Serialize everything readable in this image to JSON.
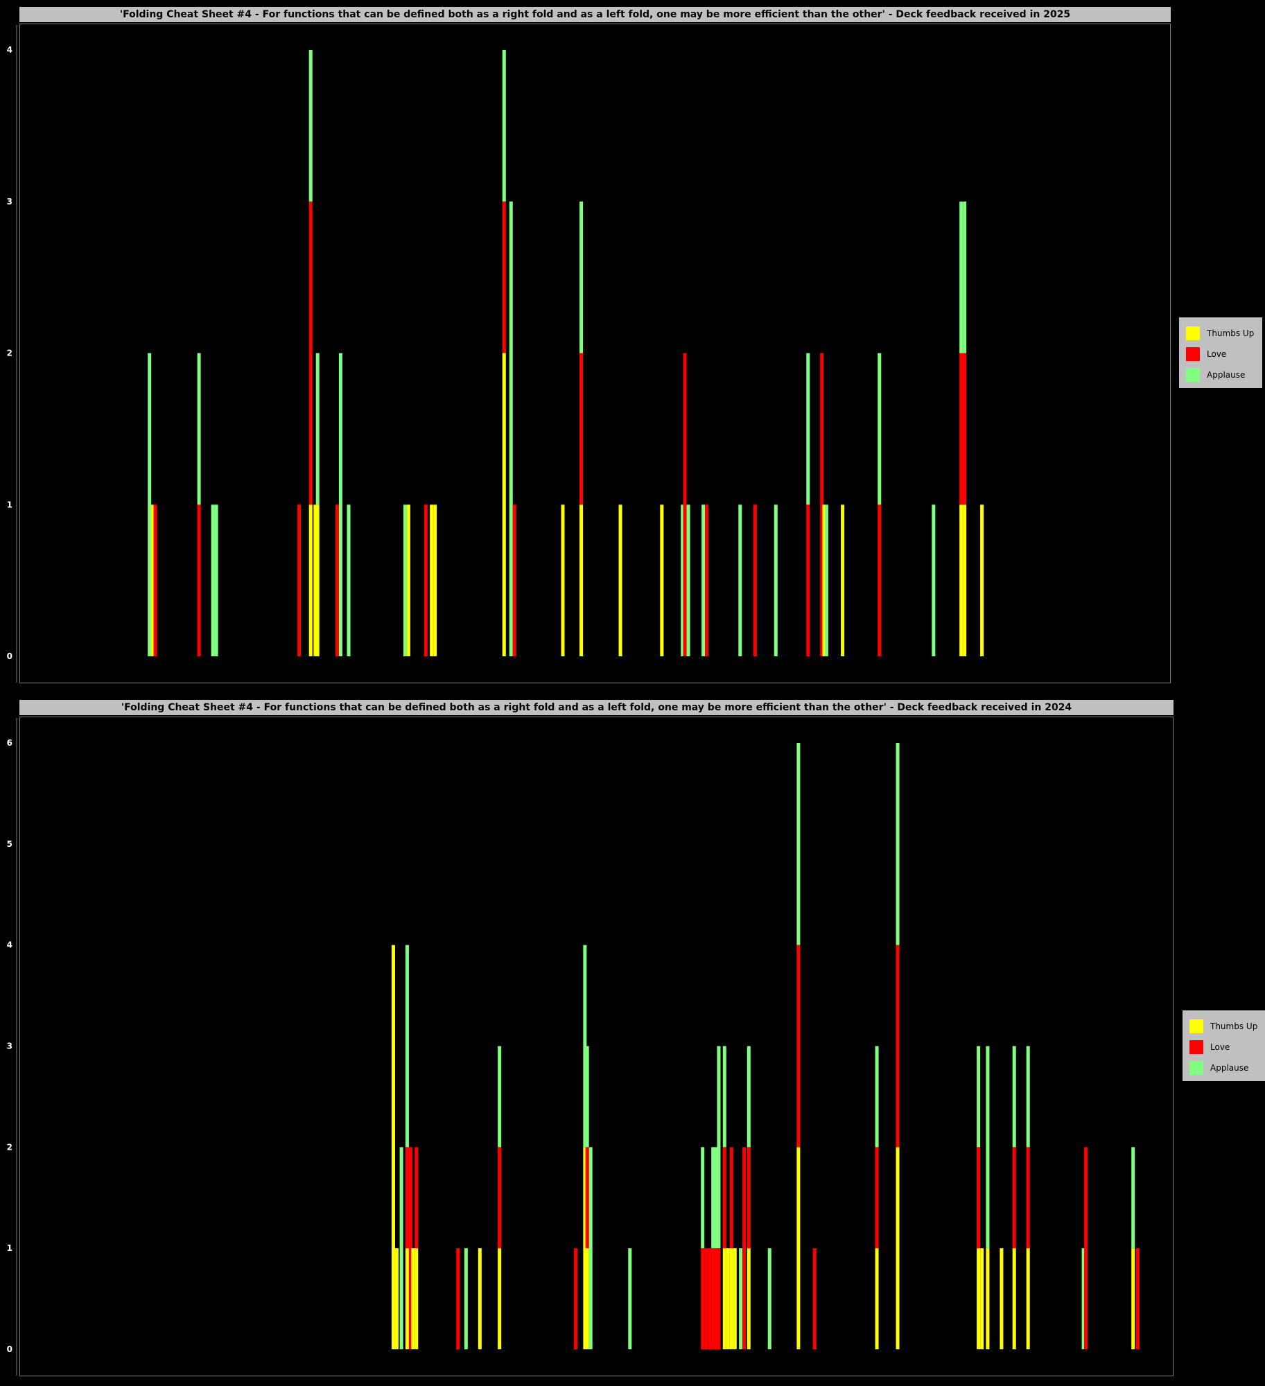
{
  "colors": {
    "thumbs_up": "#ffff00",
    "love": "#ff0000",
    "applause": "#80ff80"
  },
  "chart_data": [
    {
      "type": "bar",
      "stacked": true,
      "title": "'Folding Cheat Sheet #4 - For functions that can be defined both as a right fold and as a left fold, one may be more efficient than the other' - Deck feedback received in 2025",
      "ylim": [
        0,
        4
      ],
      "yticks": [
        "0",
        "1",
        "2",
        "3",
        "4"
      ],
      "grid": false,
      "legend_position": "right",
      "series": [
        {
          "name": "Thumbs Up",
          "color": "#ffff00"
        },
        {
          "name": "Love",
          "color": "#ff0000"
        },
        {
          "name": "Applause",
          "color": "#80ff80"
        }
      ],
      "bars": [
        {
          "x": 11.5,
          "thumbs_up": 1,
          "love": 0,
          "applause": 0
        },
        {
          "x": 11.8,
          "thumbs_up": 0,
          "love": 1,
          "applause": 0
        },
        {
          "x": 11.3,
          "thumbs_up": 0,
          "love": 0,
          "applause": 2
        },
        {
          "x": 15.6,
          "thumbs_up": 0,
          "love": 1,
          "applause": 1
        },
        {
          "x": 16.8,
          "thumbs_up": 0,
          "love": 0,
          "applause": 1
        },
        {
          "x": 17.1,
          "thumbs_up": 0,
          "love": 0,
          "applause": 1
        },
        {
          "x": 24.3,
          "thumbs_up": 0,
          "love": 1,
          "applause": 0
        },
        {
          "x": 25.3,
          "thumbs_up": 1,
          "love": 2,
          "applause": 1
        },
        {
          "x": 25.7,
          "thumbs_up": 1,
          "love": 0,
          "applause": 0
        },
        {
          "x": 25.9,
          "thumbs_up": 1,
          "love": 0,
          "applause": 1
        },
        {
          "x": 27.6,
          "thumbs_up": 0,
          "love": 1,
          "applause": 0
        },
        {
          "x": 27.9,
          "thumbs_up": 0,
          "love": 0,
          "applause": 2
        },
        {
          "x": 28.6,
          "thumbs_up": 0,
          "love": 0,
          "applause": 1
        },
        {
          "x": 33.5,
          "thumbs_up": 0,
          "love": 0,
          "applause": 1
        },
        {
          "x": 33.8,
          "thumbs_up": 1,
          "love": 0,
          "applause": 0
        },
        {
          "x": 35.3,
          "thumbs_up": 0,
          "love": 1,
          "applause": 0
        },
        {
          "x": 35.8,
          "thumbs_up": 1,
          "love": 0,
          "applause": 0
        },
        {
          "x": 36.1,
          "thumbs_up": 1,
          "love": 0,
          "applause": 0
        },
        {
          "x": 42.1,
          "thumbs_up": 2,
          "love": 1,
          "applause": 1
        },
        {
          "x": 42.7,
          "thumbs_up": 0,
          "love": 0,
          "applause": 3
        },
        {
          "x": 43.0,
          "thumbs_up": 0,
          "love": 1,
          "applause": 0
        },
        {
          "x": 47.2,
          "thumbs_up": 1,
          "love": 0,
          "applause": 0
        },
        {
          "x": 48.8,
          "thumbs_up": 1,
          "love": 1,
          "applause": 1
        },
        {
          "x": 52.2,
          "thumbs_up": 1,
          "love": 0,
          "applause": 0
        },
        {
          "x": 55.8,
          "thumbs_up": 1,
          "love": 0,
          "applause": 0
        },
        {
          "x": 57.6,
          "thumbs_up": 0,
          "love": 0,
          "applause": 1
        },
        {
          "x": 57.8,
          "thumbs_up": 0,
          "love": 2,
          "applause": 0
        },
        {
          "x": 58.1,
          "thumbs_up": 0,
          "love": 0,
          "applause": 1
        },
        {
          "x": 59.4,
          "thumbs_up": 0,
          "love": 0,
          "applause": 1
        },
        {
          "x": 59.7,
          "thumbs_up": 0,
          "love": 1,
          "applause": 0
        },
        {
          "x": 62.6,
          "thumbs_up": 0,
          "love": 0,
          "applause": 1
        },
        {
          "x": 63.9,
          "thumbs_up": 0,
          "love": 1,
          "applause": 0
        },
        {
          "x": 65.7,
          "thumbs_up": 0,
          "love": 0,
          "applause": 1
        },
        {
          "x": 68.5,
          "thumbs_up": 0,
          "love": 1,
          "applause": 1
        },
        {
          "x": 69.7,
          "thumbs_up": 0,
          "love": 2,
          "applause": 0
        },
        {
          "x": 69.9,
          "thumbs_up": 1,
          "love": 0,
          "applause": 0
        },
        {
          "x": 70.1,
          "thumbs_up": 0,
          "love": 0,
          "applause": 1
        },
        {
          "x": 71.5,
          "thumbs_up": 1,
          "love": 0,
          "applause": 0
        },
        {
          "x": 74.7,
          "thumbs_up": 0,
          "love": 1,
          "applause": 1
        },
        {
          "x": 79.4,
          "thumbs_up": 0,
          "love": 0,
          "applause": 1
        },
        {
          "x": 81.8,
          "thumbs_up": 1,
          "love": 1,
          "applause": 1
        },
        {
          "x": 82.1,
          "thumbs_up": 1,
          "love": 1,
          "applause": 1
        },
        {
          "x": 83.6,
          "thumbs_up": 1,
          "love": 0,
          "applause": 0
        }
      ]
    },
    {
      "type": "bar",
      "stacked": true,
      "title": "'Folding Cheat Sheet #4 - For functions that can be defined both as a right fold and as a left fold, one may be more efficient than the other' - Deck feedback received in 2024",
      "ylim": [
        0,
        6
      ],
      "yticks": [
        "0",
        "1",
        "2",
        "3",
        "4",
        "5",
        "6"
      ],
      "grid": false,
      "legend_position": "right",
      "series": [
        {
          "name": "Thumbs Up",
          "color": "#ffff00"
        },
        {
          "name": "Love",
          "color": "#ff0000"
        },
        {
          "name": "Applause",
          "color": "#80ff80"
        }
      ],
      "bars": [
        {
          "x": 32.4,
          "thumbs_up": 4,
          "love": 0,
          "applause": 0
        },
        {
          "x": 32.7,
          "thumbs_up": 1,
          "love": 0,
          "applause": 0
        },
        {
          "x": 33.1,
          "thumbs_up": 0,
          "love": 0,
          "applause": 2
        },
        {
          "x": 33.6,
          "thumbs_up": 1,
          "love": 1,
          "applause": 2
        },
        {
          "x": 33.9,
          "thumbs_up": 0,
          "love": 2,
          "applause": 0
        },
        {
          "x": 34.1,
          "thumbs_up": 1,
          "love": 0,
          "applause": 0
        },
        {
          "x": 34.4,
          "thumbs_up": 1,
          "love": 1,
          "applause": 0
        },
        {
          "x": 38.0,
          "thumbs_up": 0,
          "love": 1,
          "applause": 0
        },
        {
          "x": 38.7,
          "thumbs_up": 0,
          "love": 0,
          "applause": 1
        },
        {
          "x": 39.9,
          "thumbs_up": 1,
          "love": 0,
          "applause": 0
        },
        {
          "x": 41.6,
          "thumbs_up": 1,
          "love": 1,
          "applause": 1
        },
        {
          "x": 48.2,
          "thumbs_up": 0,
          "love": 1,
          "applause": 0
        },
        {
          "x": 49.0,
          "thumbs_up": 2,
          "love": 0,
          "applause": 2
        },
        {
          "x": 49.2,
          "thumbs_up": 1,
          "love": 1,
          "applause": 1
        },
        {
          "x": 49.5,
          "thumbs_up": 0,
          "love": 0,
          "applause": 2
        },
        {
          "x": 52.9,
          "thumbs_up": 0,
          "love": 0,
          "applause": 1
        },
        {
          "x": 59.2,
          "thumbs_up": 0,
          "love": 1,
          "applause": 1
        },
        {
          "x": 59.5,
          "thumbs_up": 0,
          "love": 1,
          "applause": 0
        },
        {
          "x": 59.8,
          "thumbs_up": 0,
          "love": 1,
          "applause": 0
        },
        {
          "x": 60.1,
          "thumbs_up": 0,
          "love": 1,
          "applause": 1
        },
        {
          "x": 60.3,
          "thumbs_up": 0,
          "love": 1,
          "applause": 1
        },
        {
          "x": 60.6,
          "thumbs_up": 0,
          "love": 1,
          "applause": 2
        },
        {
          "x": 61.1,
          "thumbs_up": 1,
          "love": 1,
          "applause": 1
        },
        {
          "x": 61.4,
          "thumbs_up": 1,
          "love": 0,
          "applause": 0
        },
        {
          "x": 61.7,
          "thumbs_up": 1,
          "love": 1,
          "applause": 0
        },
        {
          "x": 62.0,
          "thumbs_up": 1,
          "love": 0,
          "applause": 0
        },
        {
          "x": 62.5,
          "thumbs_up": 0,
          "love": 0,
          "applause": 1
        },
        {
          "x": 62.8,
          "thumbs_up": 0,
          "love": 2,
          "applause": 0
        },
        {
          "x": 63.2,
          "thumbs_up": 1,
          "love": 1,
          "applause": 1
        },
        {
          "x": 65.0,
          "thumbs_up": 0,
          "love": 0,
          "applause": 1
        },
        {
          "x": 67.5,
          "thumbs_up": 2,
          "love": 2,
          "applause": 2
        },
        {
          "x": 68.9,
          "thumbs_up": 0,
          "love": 1,
          "applause": 0
        },
        {
          "x": 74.3,
          "thumbs_up": 1,
          "love": 1,
          "applause": 1
        },
        {
          "x": 76.1,
          "thumbs_up": 2,
          "love": 2,
          "applause": 2
        },
        {
          "x": 83.1,
          "thumbs_up": 1,
          "love": 1,
          "applause": 1
        },
        {
          "x": 83.4,
          "thumbs_up": 1,
          "love": 0,
          "applause": 0
        },
        {
          "x": 83.9,
          "thumbs_up": 1,
          "love": 0,
          "applause": 2
        },
        {
          "x": 85.1,
          "thumbs_up": 1,
          "love": 0,
          "applause": 0
        },
        {
          "x": 86.2,
          "thumbs_up": 1,
          "love": 1,
          "applause": 1
        },
        {
          "x": 87.4,
          "thumbs_up": 1,
          "love": 1,
          "applause": 1
        },
        {
          "x": 92.2,
          "thumbs_up": 0,
          "love": 0,
          "applause": 1
        },
        {
          "x": 92.4,
          "thumbs_up": 0,
          "love": 2,
          "applause": 0
        },
        {
          "x": 96.5,
          "thumbs_up": 1,
          "love": 0,
          "applause": 1
        },
        {
          "x": 96.9,
          "thumbs_up": 0,
          "love": 1,
          "applause": 0
        }
      ]
    }
  ]
}
